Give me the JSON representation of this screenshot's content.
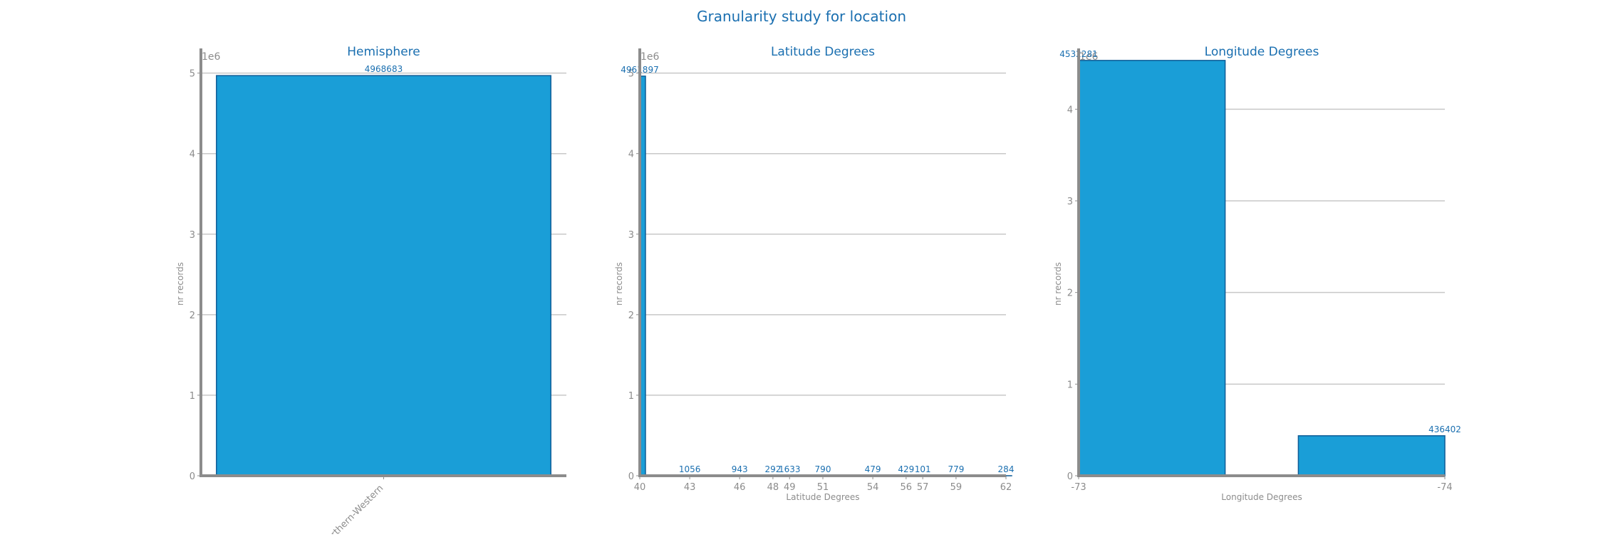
{
  "title": "Granularity study for location",
  "chart_data": [
    {
      "type": "bar",
      "title": "Hemisphere",
      "xlabel": "",
      "ylabel": "nr records",
      "y_offset_label": "1e6",
      "categories": [
        "Northern-Western"
      ],
      "values": [
        4968683
      ],
      "data_labels": [
        "4968683"
      ],
      "ylim": [
        0,
        5200000
      ],
      "yticks": [
        0,
        1,
        2,
        3,
        4,
        5
      ],
      "grid": true,
      "color": "#1a9ed7"
    },
    {
      "type": "bar",
      "title": "Latitude Degrees",
      "xlabel": "Latitude Degrees",
      "ylabel": "nr records",
      "y_offset_label": "1e6",
      "x": [
        40,
        43,
        46,
        48,
        49,
        51,
        54,
        56,
        57,
        59,
        62
      ],
      "values": [
        4961897,
        1056,
        943,
        292,
        1633,
        790,
        479,
        429,
        101,
        779,
        284
      ],
      "data_labels": [
        "4961897",
        "1056",
        "943",
        "292",
        "1633",
        "790",
        "479",
        "429",
        "101",
        "779",
        "284"
      ],
      "xlim": [
        40,
        62
      ],
      "ylim": [
        0,
        5200000
      ],
      "yticks": [
        0,
        1,
        2,
        3,
        4,
        5
      ],
      "xticks": [
        "40",
        "43",
        "46",
        "48",
        "49",
        "51",
        "54",
        "56",
        "57",
        "59",
        "62"
      ],
      "grid": true,
      "color": "#1a9ed7"
    },
    {
      "type": "bar",
      "title": "Longitude Degrees",
      "xlabel": "Longitude Degrees",
      "ylabel": "nr records",
      "y_offset_label": "1e6",
      "x": [
        -73,
        -74
      ],
      "values": [
        4532281,
        436402
      ],
      "data_labels": [
        "4532281",
        "436402"
      ],
      "xlim": [
        -73,
        -74
      ],
      "ylim": [
        0,
        4570000
      ],
      "yticks": [
        0,
        1,
        2,
        3,
        4
      ],
      "xticks": [
        "-73",
        "-74"
      ],
      "grid": true,
      "color": "#1a9ed7"
    }
  ]
}
